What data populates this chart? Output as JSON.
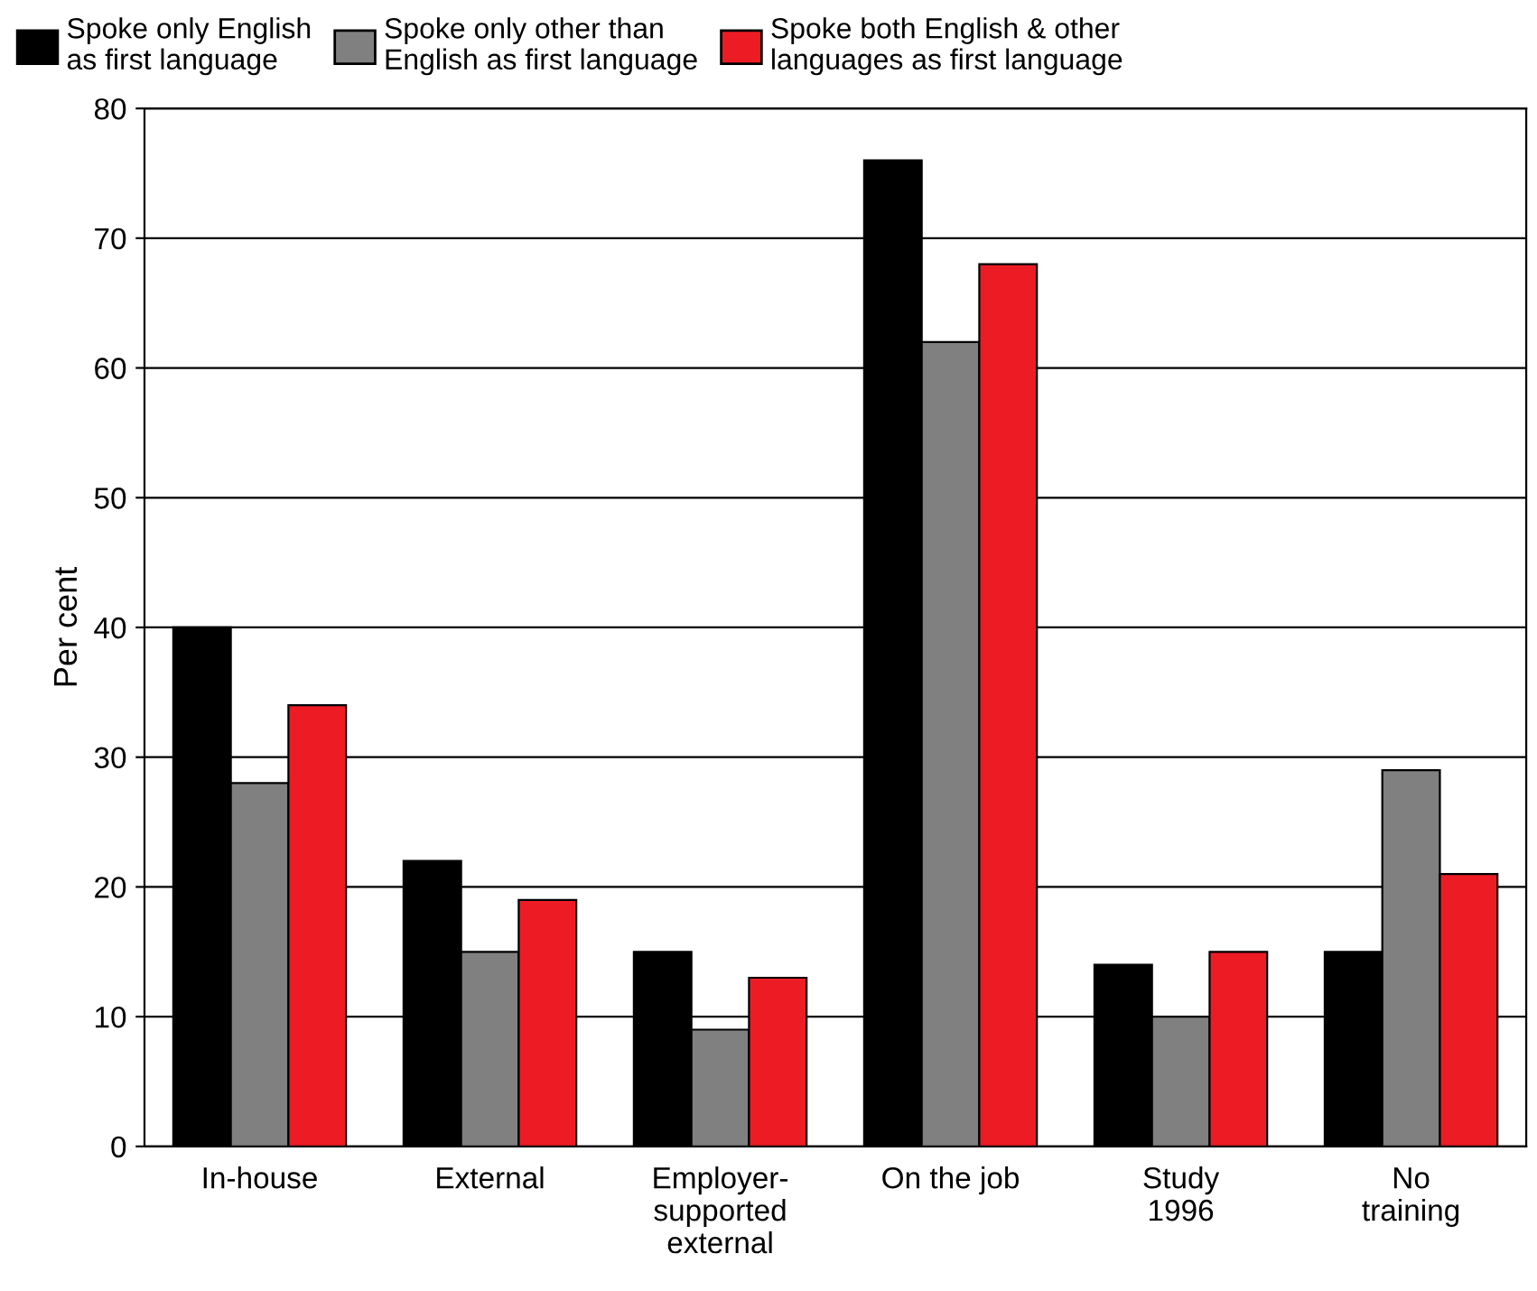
{
  "chart_data": {
    "type": "bar",
    "ylabel": "Per cent",
    "categories": [
      "In-house",
      "External",
      "Employer-\nsupported\nexternal",
      "On the job",
      "Study\n1996",
      "No\ntraining"
    ],
    "series": [
      {
        "name": "Spoke only English\nas first language",
        "color": "#000000",
        "values": [
          40,
          22,
          15,
          76,
          14,
          15
        ]
      },
      {
        "name": "Spoke only other than\nEnglish as first language",
        "color": "#808080",
        "values": [
          28,
          15,
          9,
          62,
          10,
          29
        ]
      },
      {
        "name": "Spoke both English & other\nlanguages as first language",
        "color": "#ed1c24",
        "values": [
          34,
          19,
          13,
          68,
          15,
          21
        ]
      }
    ],
    "ylim": [
      0,
      80
    ],
    "yticks": [
      0,
      10,
      20,
      30,
      40,
      50,
      60,
      70,
      80
    ],
    "grid": "y",
    "legend": "top"
  }
}
